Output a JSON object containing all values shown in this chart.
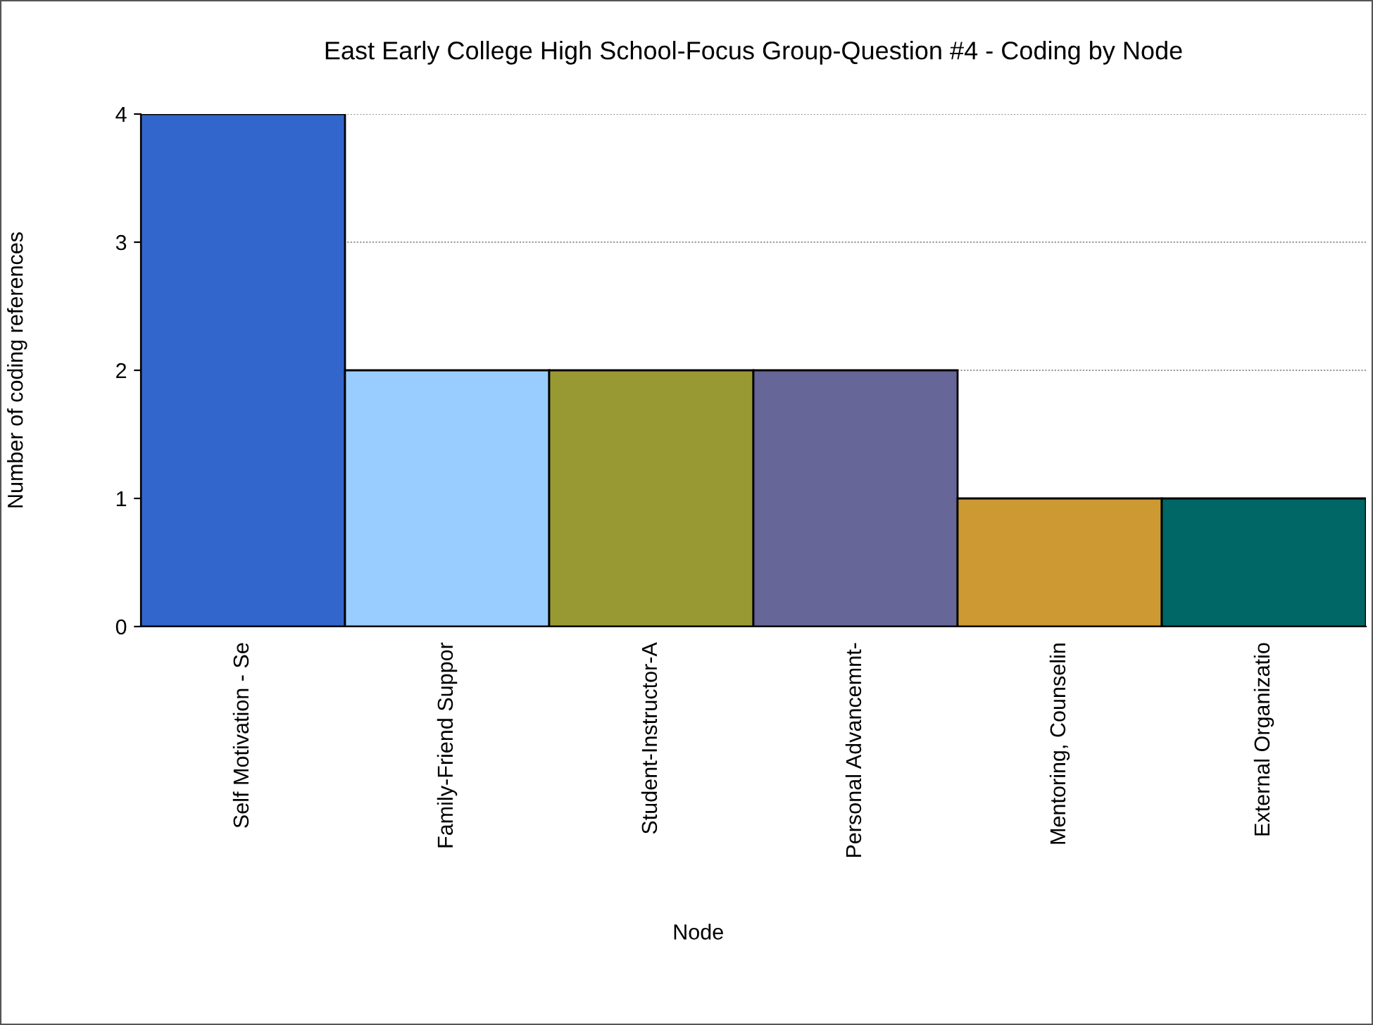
{
  "chart_data": {
    "type": "bar",
    "title": "East Early College High School-Focus Group-Question #4 - Coding by Node",
    "xlabel": "Node",
    "ylabel": "Number of coding references",
    "categories": [
      "Self Motivation - Se",
      "Family-Friend Suppor",
      "Student-Instructor-A",
      "Personal Advancemnt-",
      "Mentoring, Counselin",
      "External Organizatio"
    ],
    "values": [
      4,
      2,
      2,
      2,
      1,
      1
    ],
    "colors": [
      "#3366cc",
      "#99ccff",
      "#999933",
      "#666699",
      "#cc9933",
      "#006666"
    ],
    "ylim": [
      0,
      4
    ],
    "yticks": [
      0,
      1,
      2,
      3,
      4
    ],
    "grid": "y",
    "legend": false
  }
}
